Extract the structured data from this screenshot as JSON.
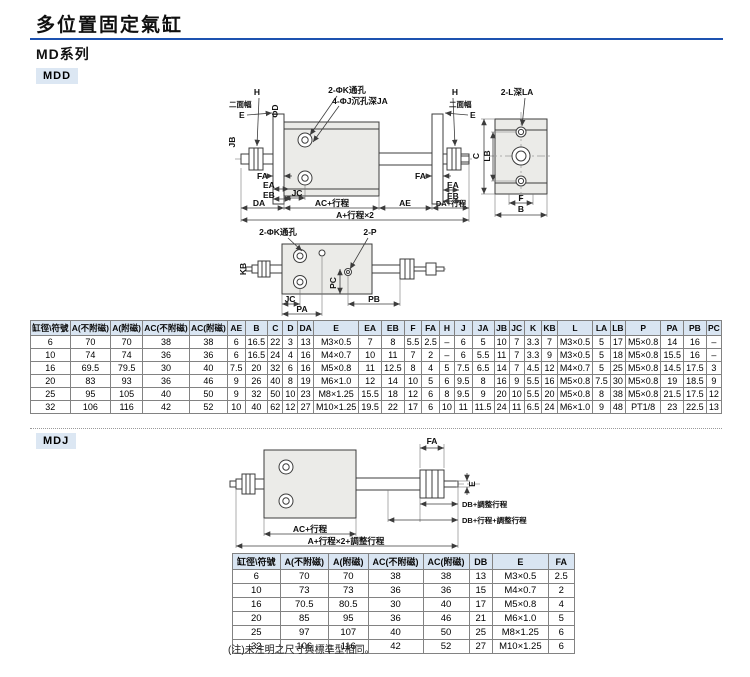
{
  "page": {
    "title": "多位置固定氣缸",
    "series": "MD系列",
    "note": "(注)未注明之尺寸與標準型相同。"
  },
  "sections": {
    "mdd": {
      "label": "MDD"
    },
    "mdj": {
      "label": "MDJ"
    }
  },
  "drawings": {
    "mdd_front": {
      "labels": {
        "h_left": "H",
        "flats_left": "二面幅",
        "e_left": "E",
        "k_holes": "2-ΦK通孔",
        "j_holes": "4-ΦJ沉孔深JA",
        "h_right": "H",
        "flats_right": "二面幅",
        "e_right": "E",
        "jb": "JB",
        "dia_d": "ΦD",
        "fa_left": "FA",
        "ea_left": "EA",
        "eb_left": "EB",
        "da": "DA",
        "jc": "JC",
        "ac": "AC+行程",
        "ae": "AE",
        "da_stroke": "DA+行程",
        "a2": "A+行程×2",
        "fa_right": "FA",
        "ea_right": "EA",
        "eb_right": "EB"
      }
    },
    "mdd_side": {
      "labels": {
        "l_holes": "2-L深LA",
        "c": "C",
        "lb": "LB",
        "f": "F",
        "b": "B"
      }
    },
    "mdd_plan": {
      "labels": {
        "k_holes": "2-ΦK通孔",
        "p": "2-P",
        "kb": "KB",
        "jc": "JC",
        "pa": "PA",
        "pc": "PC",
        "pb": "PB"
      }
    },
    "mdj": {
      "labels": {
        "fa": "FA",
        "e": "E",
        "db_adj": "DB+調整行程",
        "db_stroke_adj": "DB+行程+調整行程",
        "ac": "AC+行程",
        "a_total": "A+行程×2+調整行程"
      }
    }
  },
  "mdd_table": {
    "headers": [
      "缸徑\\符號",
      "A(不附磁)",
      "A(附磁)",
      "AC(不附磁)",
      "AC(附磁)",
      "AE",
      "B",
      "C",
      "D",
      "DA",
      "E",
      "EA",
      "EB",
      "F",
      "FA",
      "H",
      "J",
      "JA",
      "JB",
      "JC",
      "K",
      "KB",
      "L",
      "LA",
      "LB",
      "P",
      "PA",
      "PB",
      "PC"
    ],
    "rows": [
      [
        "6",
        "70",
        "70",
        "38",
        "38",
        "6",
        "16.5",
        "22",
        "3",
        "13",
        "M3×0.5",
        "7",
        "8",
        "5.5",
        "2.5",
        "–",
        "6",
        "5",
        "10",
        "7",
        "3.3",
        "7",
        "M3×0.5",
        "5",
        "17",
        "M5×0.8",
        "14",
        "16",
        "–"
      ],
      [
        "10",
        "74",
        "74",
        "36",
        "36",
        "6",
        "16.5",
        "24",
        "4",
        "16",
        "M4×0.7",
        "10",
        "11",
        "7",
        "2",
        "–",
        "6",
        "5.5",
        "11",
        "7",
        "3.3",
        "9",
        "M3×0.5",
        "5",
        "18",
        "M5×0.8",
        "15.5",
        "16",
        "–"
      ],
      [
        "16",
        "69.5",
        "79.5",
        "30",
        "40",
        "7.5",
        "20",
        "32",
        "6",
        "16",
        "M5×0.8",
        "11",
        "12.5",
        "8",
        "4",
        "5",
        "7.5",
        "6.5",
        "14",
        "7",
        "4.5",
        "12",
        "M4×0.7",
        "5",
        "25",
        "M5×0.8",
        "14.5",
        "17.5",
        "3"
      ],
      [
        "20",
        "83",
        "93",
        "36",
        "46",
        "9",
        "26",
        "40",
        "8",
        "19",
        "M6×1.0",
        "12",
        "14",
        "10",
        "5",
        "6",
        "9.5",
        "8",
        "16",
        "9",
        "5.5",
        "16",
        "M5×0.8",
        "7.5",
        "30",
        "M5×0.8",
        "19",
        "18.5",
        "9"
      ],
      [
        "25",
        "95",
        "105",
        "40",
        "50",
        "9",
        "32",
        "50",
        "10",
        "23",
        "M8×1.25",
        "15.5",
        "18",
        "12",
        "6",
        "8",
        "9.5",
        "9",
        "20",
        "10",
        "5.5",
        "20",
        "M5×0.8",
        "8",
        "38",
        "M5×0.8",
        "21.5",
        "17.5",
        "12"
      ],
      [
        "32",
        "106",
        "116",
        "42",
        "52",
        "10",
        "40",
        "62",
        "12",
        "27",
        "M10×1.25",
        "19.5",
        "22",
        "17",
        "6",
        "10",
        "11",
        "11.5",
        "24",
        "11",
        "6.5",
        "24",
        "M6×1.0",
        "9",
        "48",
        "PT1/8",
        "23",
        "22.5",
        "13"
      ]
    ]
  },
  "mdj_table": {
    "headers": [
      "缸徑\\符號",
      "A(不附磁)",
      "A(附磁)",
      "AC(不附磁)",
      "AC(附磁)",
      "DB",
      "E",
      "FA"
    ],
    "rows": [
      [
        "6",
        "70",
        "70",
        "38",
        "38",
        "13",
        "M3×0.5",
        "2.5"
      ],
      [
        "10",
        "73",
        "73",
        "36",
        "36",
        "15",
        "M4×0.7",
        "2"
      ],
      [
        "16",
        "70.5",
        "80.5",
        "30",
        "40",
        "17",
        "M5×0.8",
        "4"
      ],
      [
        "20",
        "85",
        "95",
        "36",
        "46",
        "21",
        "M6×1.0",
        "5"
      ],
      [
        "25",
        "97",
        "107",
        "40",
        "50",
        "25",
        "M8×1.25",
        "6"
      ],
      [
        "32",
        "106",
        "116",
        "42",
        "52",
        "27",
        "M10×1.25",
        "6"
      ]
    ]
  }
}
